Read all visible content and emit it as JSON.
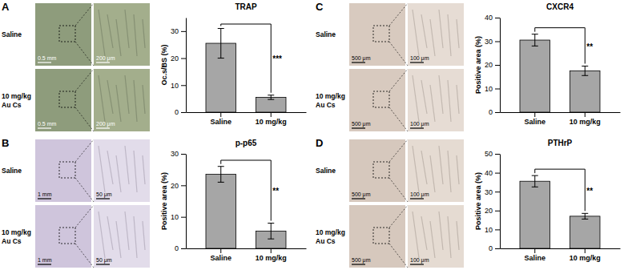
{
  "chart_data": [
    {
      "type": "bar",
      "title": "TRAP",
      "y_label": "Oc.s/BS (%)",
      "categories": [
        "Saline",
        "10 mg/kg"
      ],
      "values": [
        25.5,
        5.5
      ],
      "errors": [
        5.5,
        0.8
      ],
      "significance": "***",
      "color": "#a6a6a6",
      "ylim": [
        0,
        35
      ],
      "yticks": [
        0,
        10,
        20,
        30
      ]
    },
    {
      "type": "bar",
      "title": "p-p65",
      "y_label": "Positive area (%)",
      "categories": [
        "Saline",
        "10 mg/kg"
      ],
      "values": [
        23.5,
        5.5
      ],
      "errors": [
        2.5,
        2.5
      ],
      "significance": "**",
      "color": "#a6a6a6",
      "ylim": [
        0,
        30
      ],
      "yticks": [
        0,
        10,
        20,
        30
      ]
    },
    {
      "type": "bar",
      "title": "CXCR4",
      "y_label": "Positive area (%)",
      "categories": [
        "Saline",
        "10 mg/kg"
      ],
      "values": [
        30.5,
        17.5
      ],
      "errors": [
        2.5,
        2
      ],
      "significance": "**",
      "color": "#a6a6a6",
      "ylim": [
        0,
        40
      ],
      "yticks": [
        0,
        10,
        20,
        30,
        40
      ]
    },
    {
      "type": "bar",
      "title": "PTHrP",
      "y_label": "Positive area (%)",
      "categories": [
        "Saline",
        "10 mg/kg"
      ],
      "values": [
        35.5,
        17
      ],
      "errors": [
        3,
        1.5
      ],
      "significance": "**",
      "color": "#a6a6a6",
      "ylim": [
        0,
        50
      ],
      "yticks": [
        0,
        10,
        20,
        30,
        40,
        50
      ]
    }
  ],
  "panels": [
    {
      "letter": "A",
      "rows": [
        [
          "Saline"
        ],
        [
          "10 mg/kg",
          "Au Cs"
        ]
      ],
      "scale_bars": [
        "0.5 mm",
        "200 μm"
      ]
    },
    {
      "letter": "B",
      "rows": [
        [
          "Saline"
        ],
        [
          "10 mg/kg",
          "Au Cs"
        ]
      ],
      "scale_bars": [
        "1 mm",
        "50 μm"
      ]
    },
    {
      "letter": "C",
      "rows": [
        [
          "Saline"
        ],
        [
          "10 mg/kg",
          "Au Cs"
        ]
      ],
      "scale_bars": [
        "500 μm",
        "100 μm"
      ]
    },
    {
      "letter": "D",
      "rows": [
        [
          "Saline"
        ],
        [
          "10 mg/kg",
          "Au Cs"
        ]
      ],
      "scale_bars": [
        "500 μm",
        "100 μm"
      ]
    }
  ]
}
